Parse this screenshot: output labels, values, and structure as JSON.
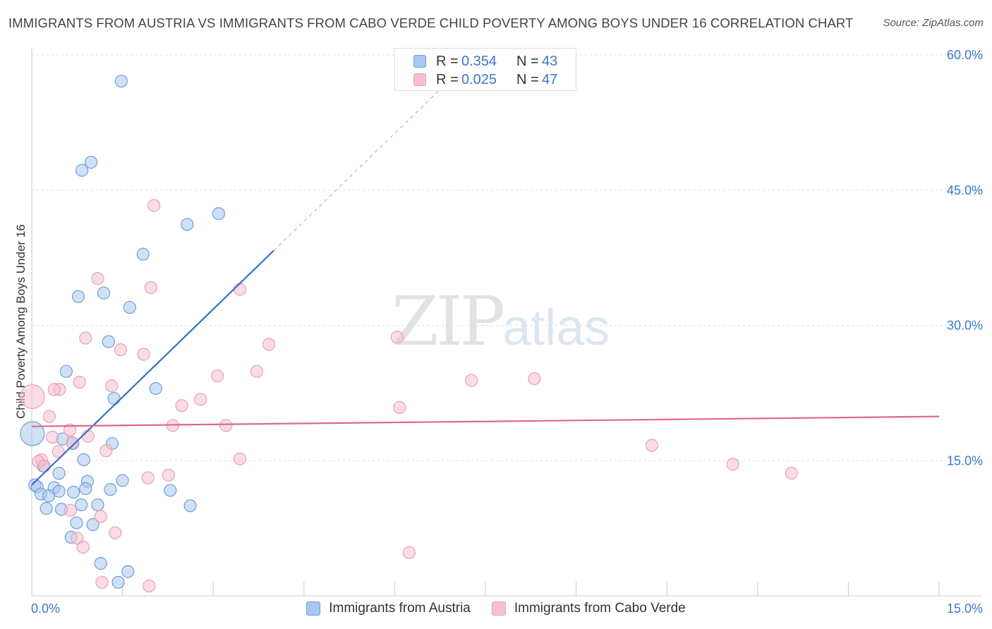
{
  "header": {
    "title": "IMMIGRANTS FROM AUSTRIA VS IMMIGRANTS FROM CABO VERDE CHILD POVERTY AMONG BOYS UNDER 16 CORRELATION CHART",
    "source": "Source: ZipAtlas.com"
  },
  "watermark": {
    "zip": "ZIP",
    "atlas": "atlas"
  },
  "legend": {
    "rows": [
      {
        "r_label": "R = ",
        "r_value": "0.354",
        "n_label": "N = ",
        "n_value": "43"
      },
      {
        "r_label": "R = ",
        "r_value": "0.025",
        "n_label": "N = ",
        "n_value": "47"
      }
    ],
    "bottom": [
      "Immigrants from Austria",
      "Immigrants from Cabo Verde"
    ]
  },
  "colors": {
    "austria_fill": "#a9c8ee",
    "austria_stroke": "#6d9fd9",
    "austria_line": "#3470cc",
    "caboverde_fill": "#f6c0d0",
    "caboverde_stroke": "#e7a1b7",
    "caboverde_line": "#e0678f",
    "tick_label": "#3b78c8",
    "grid": "#dddddd"
  },
  "chart_data": {
    "type": "scatter",
    "title": "IMMIGRANTS FROM AUSTRIA VS IMMIGRANTS FROM CABO VERDE CHILD POVERTY AMONG BOYS UNDER 16 CORRELATION CHART",
    "xlabel": "",
    "ylabel": "Child Poverty Among Boys Under 16",
    "xlim": [
      0,
      15
    ],
    "ylim": [
      0,
      60
    ],
    "x_tick_labels": [
      {
        "value": 0,
        "label": "0.0%"
      },
      {
        "value": 15,
        "label": "15.0%"
      }
    ],
    "y_tick_labels": [
      {
        "value": 15,
        "label": "15.0%"
      },
      {
        "value": 30,
        "label": "30.0%"
      },
      {
        "value": 45,
        "label": "45.0%"
      },
      {
        "value": 60,
        "label": "60.0%"
      }
    ],
    "series": [
      {
        "name": "Immigrants from Austria",
        "R": 0.354,
        "N": 43,
        "trend": {
          "x0": 0.0,
          "y0": 12.3,
          "x1": 4.0,
          "y1": 38.3,
          "dash_to_x": 7.0,
          "dash_to_y": 57.8
        },
        "points": [
          [
            1.48,
            57.1
          ],
          [
            0.98,
            48.1
          ],
          [
            0.83,
            47.2
          ],
          [
            3.09,
            42.4
          ],
          [
            2.57,
            41.2
          ],
          [
            1.84,
            37.9
          ],
          [
            1.19,
            33.6
          ],
          [
            0.77,
            33.2
          ],
          [
            1.62,
            32.0
          ],
          [
            1.27,
            28.2
          ],
          [
            0.57,
            24.9
          ],
          [
            2.05,
            23.0
          ],
          [
            1.36,
            21.9
          ],
          [
            0.01,
            18.0
          ],
          [
            0.86,
            15.1
          ],
          [
            1.33,
            16.9
          ],
          [
            0.51,
            17.4
          ],
          [
            0.68,
            16.9
          ],
          [
            0.19,
            14.4
          ],
          [
            0.45,
            13.6
          ],
          [
            0.92,
            12.7
          ],
          [
            1.5,
            12.8
          ],
          [
            0.05,
            12.3
          ],
          [
            0.09,
            12.1
          ],
          [
            0.37,
            12.0
          ],
          [
            0.89,
            11.9
          ],
          [
            1.3,
            11.8
          ],
          [
            2.29,
            11.7
          ],
          [
            0.45,
            11.6
          ],
          [
            0.69,
            11.5
          ],
          [
            0.15,
            11.3
          ],
          [
            0.28,
            11.1
          ],
          [
            0.82,
            10.1
          ],
          [
            1.09,
            10.1
          ],
          [
            2.62,
            10.0
          ],
          [
            0.24,
            9.7
          ],
          [
            0.49,
            9.6
          ],
          [
            0.74,
            8.1
          ],
          [
            1.01,
            7.9
          ],
          [
            0.65,
            6.5
          ],
          [
            1.14,
            3.6
          ],
          [
            1.59,
            2.7
          ],
          [
            1.43,
            1.5
          ]
        ]
      },
      {
        "name": "Immigrants from Cabo Verde",
        "R": 0.025,
        "N": 47,
        "trend": {
          "x0": 0.0,
          "y0": 18.8,
          "x1": 15.0,
          "y1": 19.9
        },
        "points": [
          [
            2.02,
            43.3
          ],
          [
            1.09,
            35.2
          ],
          [
            1.97,
            34.2
          ],
          [
            3.44,
            34.0
          ],
          [
            6.04,
            28.7
          ],
          [
            0.89,
            28.6
          ],
          [
            3.92,
            27.9
          ],
          [
            1.47,
            27.3
          ],
          [
            1.85,
            26.8
          ],
          [
            3.72,
            24.9
          ],
          [
            3.07,
            24.4
          ],
          [
            7.27,
            23.9
          ],
          [
            8.31,
            24.1
          ],
          [
            0.79,
            23.7
          ],
          [
            1.32,
            23.3
          ],
          [
            0.46,
            22.9
          ],
          [
            0.37,
            22.9
          ],
          [
            0.01,
            22.1
          ],
          [
            2.79,
            21.8
          ],
          [
            2.48,
            21.1
          ],
          [
            6.08,
            20.9
          ],
          [
            0.29,
            19.9
          ],
          [
            2.33,
            18.9
          ],
          [
            3.21,
            18.9
          ],
          [
            0.63,
            18.4
          ],
          [
            0.93,
            17.7
          ],
          [
            0.34,
            17.6
          ],
          [
            0.67,
            17.0
          ],
          [
            0.44,
            16.0
          ],
          [
            1.23,
            16.1
          ],
          [
            10.25,
            16.7
          ],
          [
            3.44,
            15.2
          ],
          [
            0.16,
            15.1
          ],
          [
            0.11,
            14.9
          ],
          [
            11.59,
            14.6
          ],
          [
            12.56,
            13.6
          ],
          [
            2.26,
            13.4
          ],
          [
            1.92,
            13.1
          ],
          [
            0.64,
            9.5
          ],
          [
            1.14,
            8.8
          ],
          [
            1.38,
            7.0
          ],
          [
            0.75,
            6.4
          ],
          [
            0.85,
            5.4
          ],
          [
            6.24,
            4.8
          ],
          [
            1.16,
            1.5
          ],
          [
            1.94,
            1.1
          ],
          [
            0.21,
            14.4
          ]
        ]
      }
    ],
    "large_points": [
      {
        "series": 0,
        "index": 13
      },
      {
        "series": 1,
        "index": 17
      }
    ]
  }
}
